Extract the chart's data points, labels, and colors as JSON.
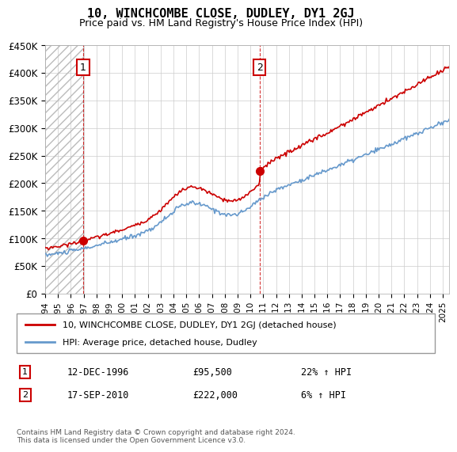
{
  "title": "10, WINCHCOMBE CLOSE, DUDLEY, DY1 2GJ",
  "subtitle": "Price paid vs. HM Land Registry's House Price Index (HPI)",
  "legend_line1": "10, WINCHCOMBE CLOSE, DUDLEY, DY1 2GJ (detached house)",
  "legend_line2": "HPI: Average price, detached house, Dudley",
  "annotation1_label": "1",
  "annotation1_date": "12-DEC-1996",
  "annotation1_price": 95500,
  "annotation1_hpi": "22% ↑ HPI",
  "annotation2_label": "2",
  "annotation2_date": "17-SEP-2010",
  "annotation2_price": 222000,
  "annotation2_hpi": "6% ↑ HPI",
  "footer": "Contains HM Land Registry data © Crown copyright and database right 2024.\nThis data is licensed under the Open Government Licence v3.0.",
  "hatch_color": "#cccccc",
  "red_color": "#cc0000",
  "blue_color": "#6699cc",
  "dashed_line_color": "#cc0000",
  "ylim_min": 0,
  "ylim_max": 450000,
  "sale1_year": 1996.95,
  "sale1_price": 95500,
  "sale2_year": 2010.72,
  "sale2_price": 222000,
  "xmin": 1994,
  "xmax": 2025.5
}
